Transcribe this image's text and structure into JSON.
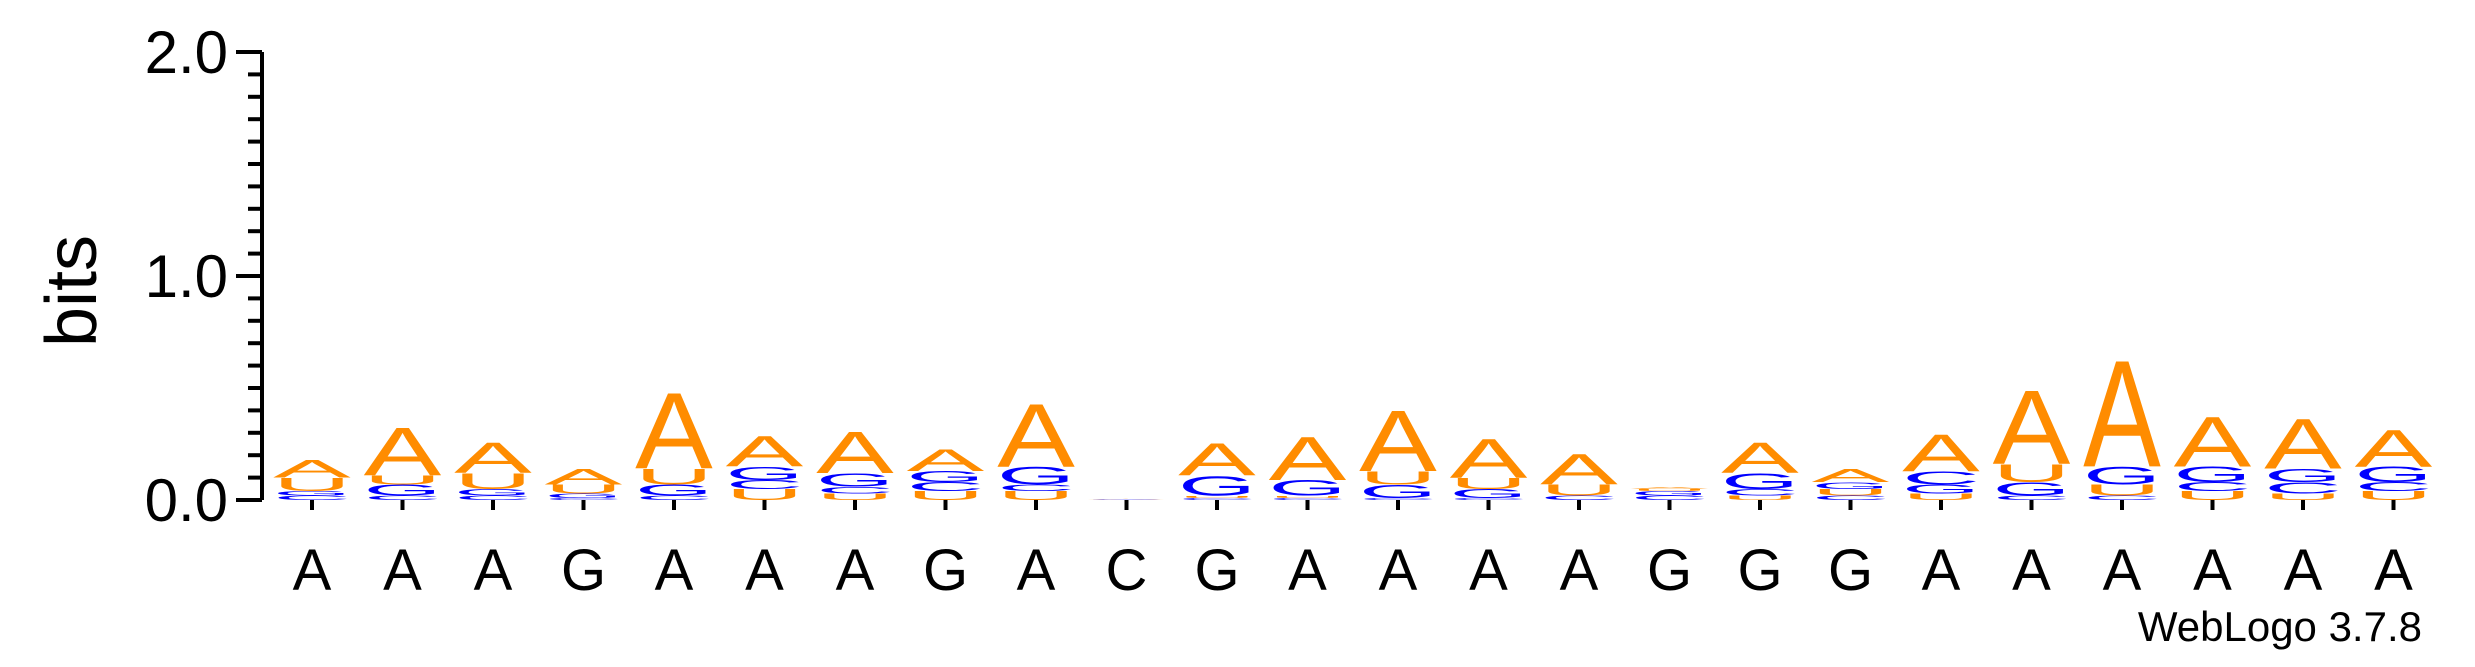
{
  "chart_data": {
    "type": "sequence-logo",
    "ylabel": "bits",
    "ylim": [
      0,
      2.0
    ],
    "yticks": [
      "0.0",
      "1.0",
      "2.0"
    ],
    "credit": "WebLogo 3.7.8",
    "colors": {
      "A": "#ff8c00",
      "U": "#ff8c00",
      "G": "#0000ff",
      "C": "#0000ff"
    },
    "positions": [
      {
        "label": "A",
        "stack": [
          [
            "C",
            0.02
          ],
          [
            "G",
            0.02
          ],
          [
            "U",
            0.06
          ],
          [
            "A",
            0.08
          ]
        ]
      },
      {
        "label": "A",
        "stack": [
          [
            "C",
            0.02
          ],
          [
            "G",
            0.05
          ],
          [
            "U",
            0.04
          ],
          [
            "A",
            0.22
          ]
        ]
      },
      {
        "label": "A",
        "stack": [
          [
            "C",
            0.02
          ],
          [
            "G",
            0.03
          ],
          [
            "U",
            0.07
          ],
          [
            "A",
            0.14
          ]
        ]
      },
      {
        "label": "G",
        "stack": [
          [
            "C",
            0.01
          ],
          [
            "G",
            0.02
          ],
          [
            "U",
            0.04
          ],
          [
            "A",
            0.07
          ]
        ]
      },
      {
        "label": "A",
        "stack": [
          [
            "C",
            0.02
          ],
          [
            "G",
            0.05
          ],
          [
            "U",
            0.07
          ],
          [
            "A",
            0.35
          ]
        ]
      },
      {
        "label": "A",
        "stack": [
          [
            "U",
            0.05
          ],
          [
            "C",
            0.04
          ],
          [
            "G",
            0.06
          ],
          [
            "A",
            0.14
          ]
        ]
      },
      {
        "label": "A",
        "stack": [
          [
            "U",
            0.03
          ],
          [
            "C",
            0.03
          ],
          [
            "G",
            0.06
          ],
          [
            "A",
            0.19
          ]
        ]
      },
      {
        "label": "G",
        "stack": [
          [
            "U",
            0.04
          ],
          [
            "C",
            0.04
          ],
          [
            "G",
            0.05
          ],
          [
            "A",
            0.1
          ]
        ]
      },
      {
        "label": "A",
        "stack": [
          [
            "U",
            0.04
          ],
          [
            "C",
            0.03
          ],
          [
            "G",
            0.08
          ],
          [
            "A",
            0.29
          ]
        ]
      },
      {
        "label": "C",
        "stack": [
          [
            "C",
            0.002
          ],
          [
            "A",
            0.002
          ]
        ]
      },
      {
        "label": "G",
        "stack": [
          [
            "C",
            0.01
          ],
          [
            "U",
            0.01
          ],
          [
            "G",
            0.09
          ],
          [
            "A",
            0.15
          ]
        ]
      },
      {
        "label": "A",
        "stack": [
          [
            "C",
            0.01
          ],
          [
            "U",
            0.01
          ],
          [
            "G",
            0.07
          ],
          [
            "A",
            0.2
          ]
        ]
      },
      {
        "label": "A",
        "stack": [
          [
            "C",
            0.01
          ],
          [
            "G",
            0.06
          ],
          [
            "U",
            0.06
          ],
          [
            "A",
            0.28
          ]
        ]
      },
      {
        "label": "A",
        "stack": [
          [
            "C",
            0.01
          ],
          [
            "G",
            0.04
          ],
          [
            "U",
            0.05
          ],
          [
            "A",
            0.18
          ]
        ]
      },
      {
        "label": "A",
        "stack": [
          [
            "C",
            0.02
          ],
          [
            "U",
            0.05
          ],
          [
            "A",
            0.14
          ]
        ]
      },
      {
        "label": "G",
        "stack": [
          [
            "C",
            0.02
          ],
          [
            "G",
            0.02
          ],
          [
            "U",
            0.01
          ],
          [
            "A",
            0.01
          ]
        ]
      },
      {
        "label": "G",
        "stack": [
          [
            "U",
            0.02
          ],
          [
            "C",
            0.03
          ],
          [
            "G",
            0.07
          ],
          [
            "A",
            0.14
          ]
        ]
      },
      {
        "label": "G",
        "stack": [
          [
            "C",
            0.02
          ],
          [
            "U",
            0.03
          ],
          [
            "G",
            0.03
          ],
          [
            "A",
            0.06
          ]
        ]
      },
      {
        "label": "A",
        "stack": [
          [
            "U",
            0.03
          ],
          [
            "G",
            0.04
          ],
          [
            "C",
            0.06
          ],
          [
            "A",
            0.17
          ]
        ]
      },
      {
        "label": "A",
        "stack": [
          [
            "C",
            0.02
          ],
          [
            "G",
            0.06
          ],
          [
            "U",
            0.08
          ],
          [
            "A",
            0.34
          ]
        ]
      },
      {
        "label": "A",
        "stack": [
          [
            "C",
            0.02
          ],
          [
            "U",
            0.05
          ],
          [
            "G",
            0.08
          ],
          [
            "A",
            0.49
          ]
        ]
      },
      {
        "label": "A",
        "stack": [
          [
            "U",
            0.04
          ],
          [
            "C",
            0.04
          ],
          [
            "G",
            0.07
          ],
          [
            "A",
            0.23
          ]
        ]
      },
      {
        "label": "A",
        "stack": [
          [
            "U",
            0.03
          ],
          [
            "C",
            0.05
          ],
          [
            "G",
            0.06
          ],
          [
            "A",
            0.23
          ]
        ]
      },
      {
        "label": "A",
        "stack": [
          [
            "U",
            0.04
          ],
          [
            "C",
            0.04
          ],
          [
            "G",
            0.07
          ],
          [
            "A",
            0.17
          ]
        ]
      }
    ]
  }
}
